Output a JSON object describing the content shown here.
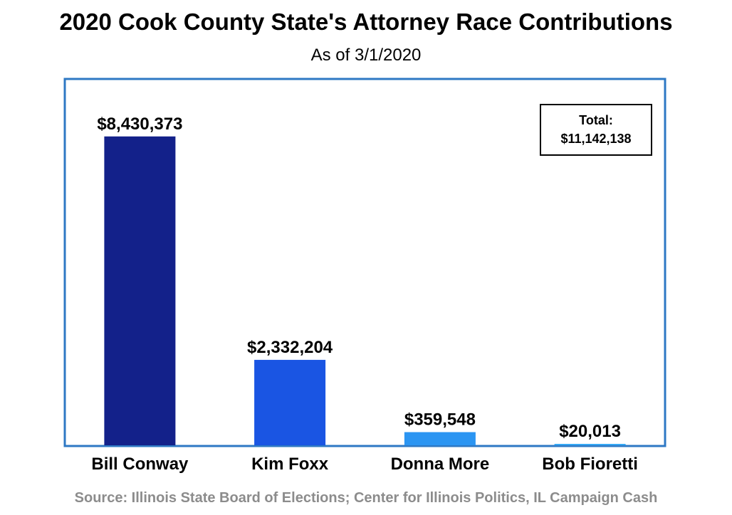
{
  "chart_data": {
    "type": "bar",
    "title": "2020 Cook County State's Attorney Race Contributions",
    "subtitle": "As of 3/1/2020",
    "categories": [
      "Bill Conway",
      "Kim Foxx",
      "Donna More",
      "Bob Fioretti"
    ],
    "values": [
      8430373,
      2332204,
      359548,
      20013
    ],
    "data_labels": [
      "$8,430,373",
      "$2,332,204",
      "$359,548",
      "$20,013"
    ],
    "colors": [
      "#13218a",
      "#1a55e3",
      "#2b95f2",
      "#35a9f5"
    ],
    "ylim": [
      0,
      10000000
    ],
    "grid": false,
    "legend": "none",
    "annotation": {
      "title": "Total:",
      "value": "$11,142,138",
      "placement": "top-right"
    },
    "frame_color": "#2e78c4"
  },
  "source": "Source: Illinois State Board of Elections; Center for Illinois Politics, IL Campaign Cash"
}
